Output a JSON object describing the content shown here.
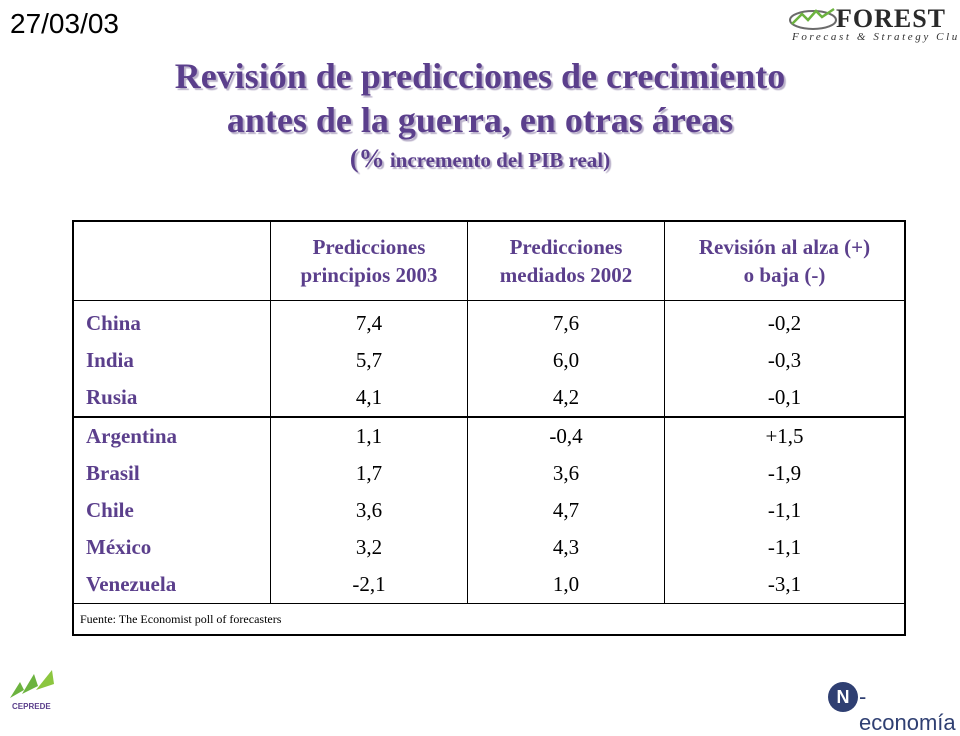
{
  "header": {
    "date": "27/03/03",
    "logo": {
      "word": "FOREST",
      "subtitle": "Forecast & Strategy Club",
      "icon": "forest-swirl-icon"
    }
  },
  "title": {
    "line1": "Revisión de predicciones de crecimiento",
    "line2": "antes de la guerra, en otras áreas",
    "line3_prefix": "(%",
    "line3_rest": " incremento del PIB real)"
  },
  "table": {
    "columns": [
      {
        "line1": "Predicciones",
        "line2": "principios 2003"
      },
      {
        "line1": "Predicciones",
        "line2": "mediados 2002"
      },
      {
        "line1": "Revisión al alza (+)",
        "line2": "o baja (-)"
      }
    ],
    "groups": [
      [
        {
          "country": "China",
          "early2003": "7,4",
          "mid2002": "7,6",
          "revision": "-0,2"
        },
        {
          "country": "India",
          "early2003": "5,7",
          "mid2002": "6,0",
          "revision": "-0,3"
        },
        {
          "country": "Rusia",
          "early2003": "4,1",
          "mid2002": "4,2",
          "revision": "-0,1"
        }
      ],
      [
        {
          "country": "Argentina",
          "early2003": "1,1",
          "mid2002": "-0,4",
          "revision": "+1,5"
        },
        {
          "country": "Brasil",
          "early2003": "1,7",
          "mid2002": "3,6",
          "revision": "-1,9"
        },
        {
          "country": "Chile",
          "early2003": "3,6",
          "mid2002": "4,7",
          "revision": "-1,1"
        },
        {
          "country": "México",
          "early2003": "3,2",
          "mid2002": "4,3",
          "revision": "-1,1"
        },
        {
          "country": "Venezuela",
          "early2003": "-2,1",
          "mid2002": "1,0",
          "revision": "-3,1"
        }
      ]
    ],
    "source": "Fuente: The Economist poll of forecasters"
  },
  "footer": {
    "left_logo": {
      "text": "CEPREDE",
      "icon": "ceprede-leaf-icon"
    },
    "right_logo": {
      "mark": "N",
      "text": "-economía"
    }
  },
  "colors": {
    "title": "#5b3f8c",
    "title_shadow": "#b9b0c9",
    "green": "#6cb33f",
    "navy": "#2f3f72"
  }
}
